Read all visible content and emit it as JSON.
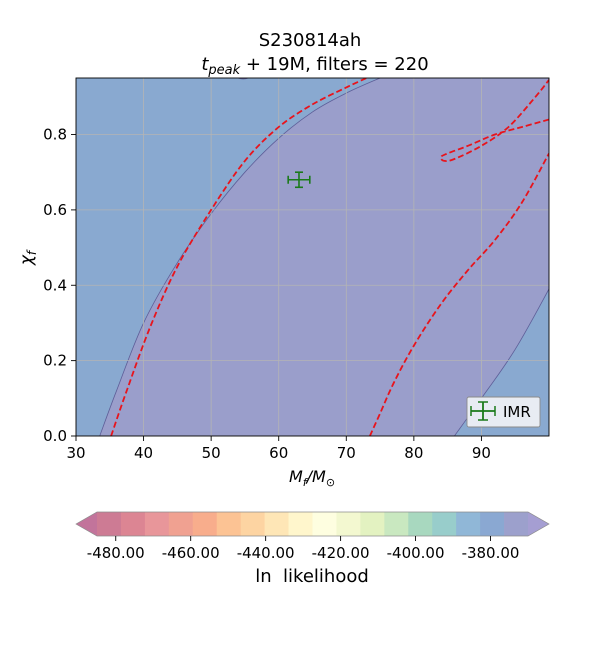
{
  "chart_data": {
    "type": "heatmap",
    "title_line1": "S230814ah",
    "title_line2": {
      "t": "t",
      "sub": "peak",
      "rest": " + 19M, filters = 220"
    },
    "xlabel": {
      "m": "M",
      "sub": "f",
      "slash": "/",
      "m2": "M",
      "sub2": "⊙"
    },
    "ylabel": {
      "chi": "χ",
      "sub": "f"
    },
    "xlim": [
      30,
      100
    ],
    "ylim": [
      0,
      0.95
    ],
    "xticks": [
      "30",
      "40",
      "50",
      "60",
      "70",
      "80",
      "90"
    ],
    "yticks": [
      "0.0",
      "0.2",
      "0.4",
      "0.6",
      "0.8"
    ],
    "xtick_values": [
      30,
      40,
      50,
      60,
      70,
      80,
      90
    ],
    "ytick_values": [
      0,
      0.2,
      0.4,
      0.6,
      0.8
    ],
    "grid": true,
    "legend": {
      "placement": "lower-right",
      "entries": [
        "IMR"
      ]
    },
    "imr_point": {
      "x": 63,
      "y": 0.68,
      "xerr": 1.6,
      "yerr": 0.02
    },
    "fill_regions": [
      {
        "name": "outer",
        "level": -380,
        "color": "#89a9d0"
      },
      {
        "name": "inner",
        "level": -375,
        "color": "#9a9ecb"
      }
    ],
    "inner_region_boundary": {
      "left": [
        [
          33.5,
          0
        ],
        [
          36,
          0.12
        ],
        [
          40,
          0.3
        ],
        [
          45,
          0.46
        ],
        [
          50,
          0.59
        ],
        [
          55,
          0.7
        ],
        [
          60,
          0.79
        ],
        [
          65,
          0.86
        ],
        [
          70,
          0.91
        ],
        [
          75,
          0.95
        ]
      ],
      "top_left": [
        [
          54,
          0.95
        ],
        [
          55.5,
          0.945
        ]
      ],
      "right": [
        [
          86,
          0
        ],
        [
          90,
          0.1
        ],
        [
          95,
          0.23
        ],
        [
          100,
          0.39
        ]
      ]
    },
    "dashed_contours": [
      {
        "name": "left",
        "points": [
          [
            35.2,
            0
          ],
          [
            37.5,
            0.12
          ],
          [
            41,
            0.29
          ],
          [
            45,
            0.45
          ],
          [
            50,
            0.6
          ],
          [
            55,
            0.73
          ],
          [
            60,
            0.82
          ],
          [
            65,
            0.88
          ],
          [
            70,
            0.925
          ],
          [
            73,
            0.95
          ]
        ]
      },
      {
        "name": "middle",
        "points": [
          [
            73.5,
            0
          ],
          [
            75,
            0.06
          ],
          [
            77,
            0.14
          ],
          [
            80,
            0.24
          ],
          [
            84,
            0.35
          ],
          [
            88,
            0.44
          ],
          [
            92,
            0.52
          ],
          [
            96,
            0.62
          ],
          [
            100,
            0.75
          ]
        ]
      },
      {
        "name": "top-right",
        "points": [
          [
            100,
            0.84
          ],
          [
            96,
            0.82
          ],
          [
            92,
            0.8
          ],
          [
            88,
            0.77
          ],
          [
            85,
            0.75
          ],
          [
            84,
            0.74
          ],
          [
            84.5,
            0.73
          ],
          [
            86,
            0.735
          ],
          [
            90,
            0.77
          ],
          [
            94,
            0.82
          ],
          [
            98,
            0.9
          ],
          [
            100,
            0.945
          ]
        ]
      }
    ],
    "colorbar": {
      "label": "ln  likelihood",
      "min": -485,
      "max": -370,
      "ticks": [
        "-480.00",
        "-460.00",
        "-440.00",
        "-420.00",
        "-400.00",
        "-380.00"
      ],
      "tick_values": [
        -480,
        -460,
        -440,
        -420,
        -400,
        -380
      ],
      "colors": [
        "#cd7b94",
        "#dc8593",
        "#e8969a",
        "#f0a191",
        "#f8ad8c",
        "#fcc394",
        "#fdd4a2",
        "#fee6b6",
        "#fff6cc",
        "#fefee0",
        "#f3f8d0",
        "#e3f2c1",
        "#c9e8c0",
        "#a8d8bf",
        "#98cdcb",
        "#90b7d7",
        "#8aa8d2",
        "#9ca0cc"
      ],
      "extend_min_color": "#c2749b",
      "extend_max_color": "#a59ed2"
    }
  }
}
